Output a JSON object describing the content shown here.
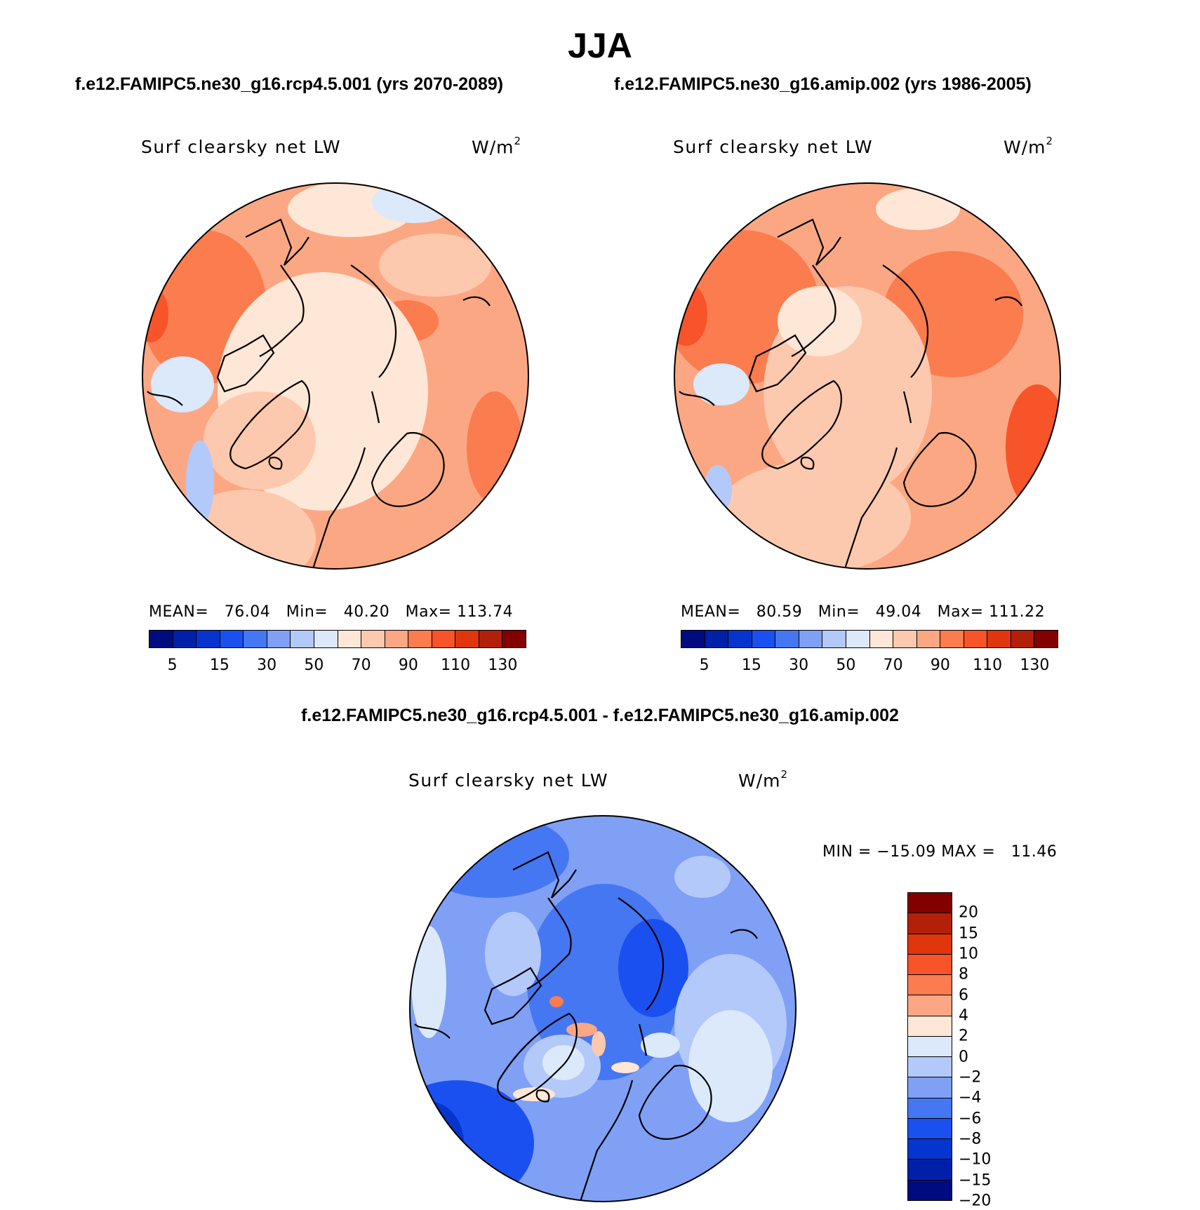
{
  "season": "JJA",
  "panels": {
    "test": {
      "case_title": "f.e12.FAMIPC5.ne30_g16.rcp4.5.001 (yrs 2070-2089)",
      "variable": "Surf clearsky net LW",
      "units_base": "W/m",
      "units_exp": "2",
      "stats": "MEAN=   76.04   Min=   40.20   Max= 113.74"
    },
    "control": {
      "case_title": "f.e12.FAMIPC5.ne30_g16.amip.002 (yrs 1986-2005)",
      "variable": "Surf clearsky net LW",
      "units_base": "W/m",
      "units_exp": "2",
      "stats": "MEAN=   80.59   Min=   49.04   Max= 111.22"
    },
    "difference": {
      "case_title": "f.e12.FAMIPC5.ne30_g16.rcp4.5.001 - f.e12.FAMIPC5.ne30_g16.amip.002",
      "variable": "Surf clearsky net LW",
      "units_base": "W/m",
      "units_exp": "2",
      "stats": "MIN = −15.09 MAX =   11.46"
    }
  },
  "colorbar_main": {
    "colors": [
      "#000b80",
      "#0020a8",
      "#0535cc",
      "#1b50f0",
      "#4677f2",
      "#7fa0f5",
      "#b3c9fa",
      "#dbe9fb",
      "#fee7d6",
      "#fdc9ae",
      "#fca783",
      "#fb7c4f",
      "#f7542a",
      "#e0360e",
      "#b3200a",
      "#820000"
    ],
    "tick_labels": [
      "5",
      "15",
      "30",
      "50",
      "70",
      "90",
      "110",
      "130"
    ]
  },
  "colorbar_diff": {
    "colors": [
      "#820000",
      "#b3200a",
      "#e0360e",
      "#f7542a",
      "#fb7c4f",
      "#fca783",
      "#fee7d6",
      "#dbe9fb",
      "#b3c9fa",
      "#7fa0f5",
      "#4677f2",
      "#1b50f0",
      "#0535cc",
      "#0020a8",
      "#000b80"
    ],
    "tick_labels": [
      "20",
      "15",
      "10",
      "8",
      "6",
      "4",
      "2",
      "0",
      "−2",
      "−4",
      "−6",
      "−8",
      "−10",
      "−15",
      "−20"
    ]
  }
}
